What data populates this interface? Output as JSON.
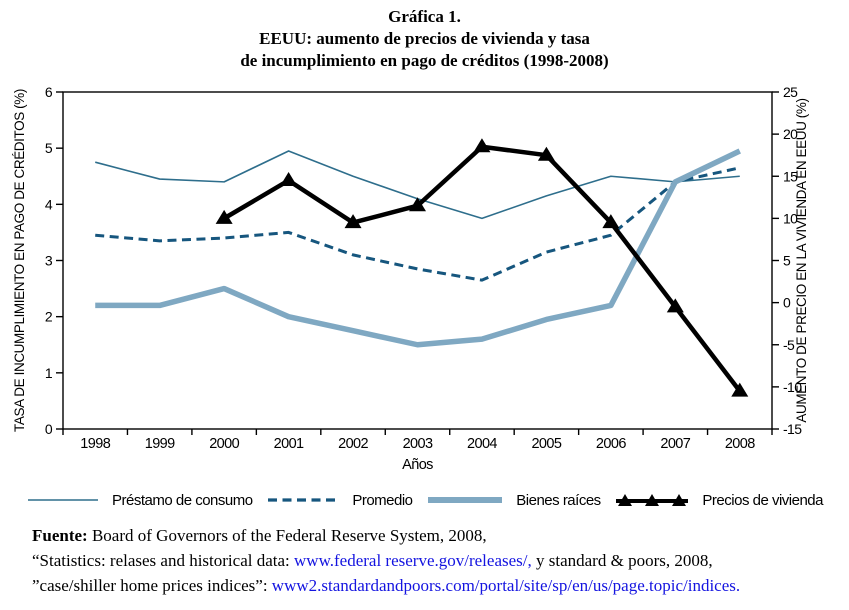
{
  "title": {
    "line1": "Gráfica 1.",
    "line2": "EEUU: aumento de precios de vivienda y tasa",
    "line3": "de incumplimiento en pago de créditos (1998-2008)"
  },
  "chart_data": {
    "type": "line",
    "title": "Gráfica 1. EEUU: aumento de precios de vivienda y tasa de incumplimiento en pago de créditos (1998-2008)",
    "x": [
      "1998",
      "1999",
      "2000",
      "2001",
      "2002",
      "2003",
      "2004",
      "2005",
      "2006",
      "2007",
      "2008"
    ],
    "xlabel": "Años",
    "ylabel_left": "TASA DE INCUMPLIMIENTO EN PAGO DE CRÉDITOS  (%)",
    "ylabel_right": "AUMENTO DE PRECIO EN LA VIVIENDA EN EEUU (%)",
    "ylim_left": [
      0,
      6
    ],
    "ylim_right": [
      -15,
      25
    ],
    "yticks_left": [
      0,
      1,
      2,
      3,
      4,
      5,
      6
    ],
    "yticks_right": [
      -15,
      -10,
      -5,
      0,
      5,
      10,
      15,
      20,
      25
    ],
    "grid": false,
    "legend_position": "bottom",
    "series": [
      {
        "name": "Préstamo de consumo",
        "axis": "left",
        "style": "thin-solid",
        "color": "#2e6e8c",
        "values": [
          4.75,
          4.45,
          4.4,
          4.95,
          4.5,
          4.1,
          3.75,
          4.15,
          4.5,
          4.4,
          4.5
        ]
      },
      {
        "name": "Promedio",
        "axis": "left",
        "style": "dashed",
        "color": "#16567e",
        "values": [
          3.45,
          3.35,
          3.4,
          3.5,
          3.1,
          2.85,
          2.65,
          3.15,
          3.45,
          4.4,
          4.65
        ]
      },
      {
        "name": "Bienes raíces",
        "axis": "left",
        "style": "thick-solid",
        "color": "#7fa8c2",
        "values": [
          2.2,
          2.2,
          2.5,
          2.0,
          1.75,
          1.5,
          1.6,
          1.95,
          2.2,
          4.4,
          4.95
        ]
      },
      {
        "name": "Precios de vivienda",
        "axis": "right",
        "style": "triangle-line",
        "color": "#000000",
        "values": [
          null,
          null,
          10,
          14.5,
          9.5,
          11.5,
          18.5,
          17.5,
          9.5,
          -0.5,
          -10.5
        ]
      }
    ]
  },
  "source": {
    "label": "Fuente:",
    "line1_rest": " Board of Governors of the Federal Reserve System, 2008,",
    "line2_pre": "“Statistics: relases and historical data: ",
    "line2_link": "www.federal reserve.gov/releases/,",
    "line2_post": " y standard & poors, 2008,",
    "line3_pre": "”case/shiller home prices indices”: ",
    "line3_link": "www2.standardandpoors.com/portal/site/sp/en/us/page.topic/indices."
  },
  "colors": {
    "link_blue": "#1414e0",
    "axis_black": "#000000"
  }
}
